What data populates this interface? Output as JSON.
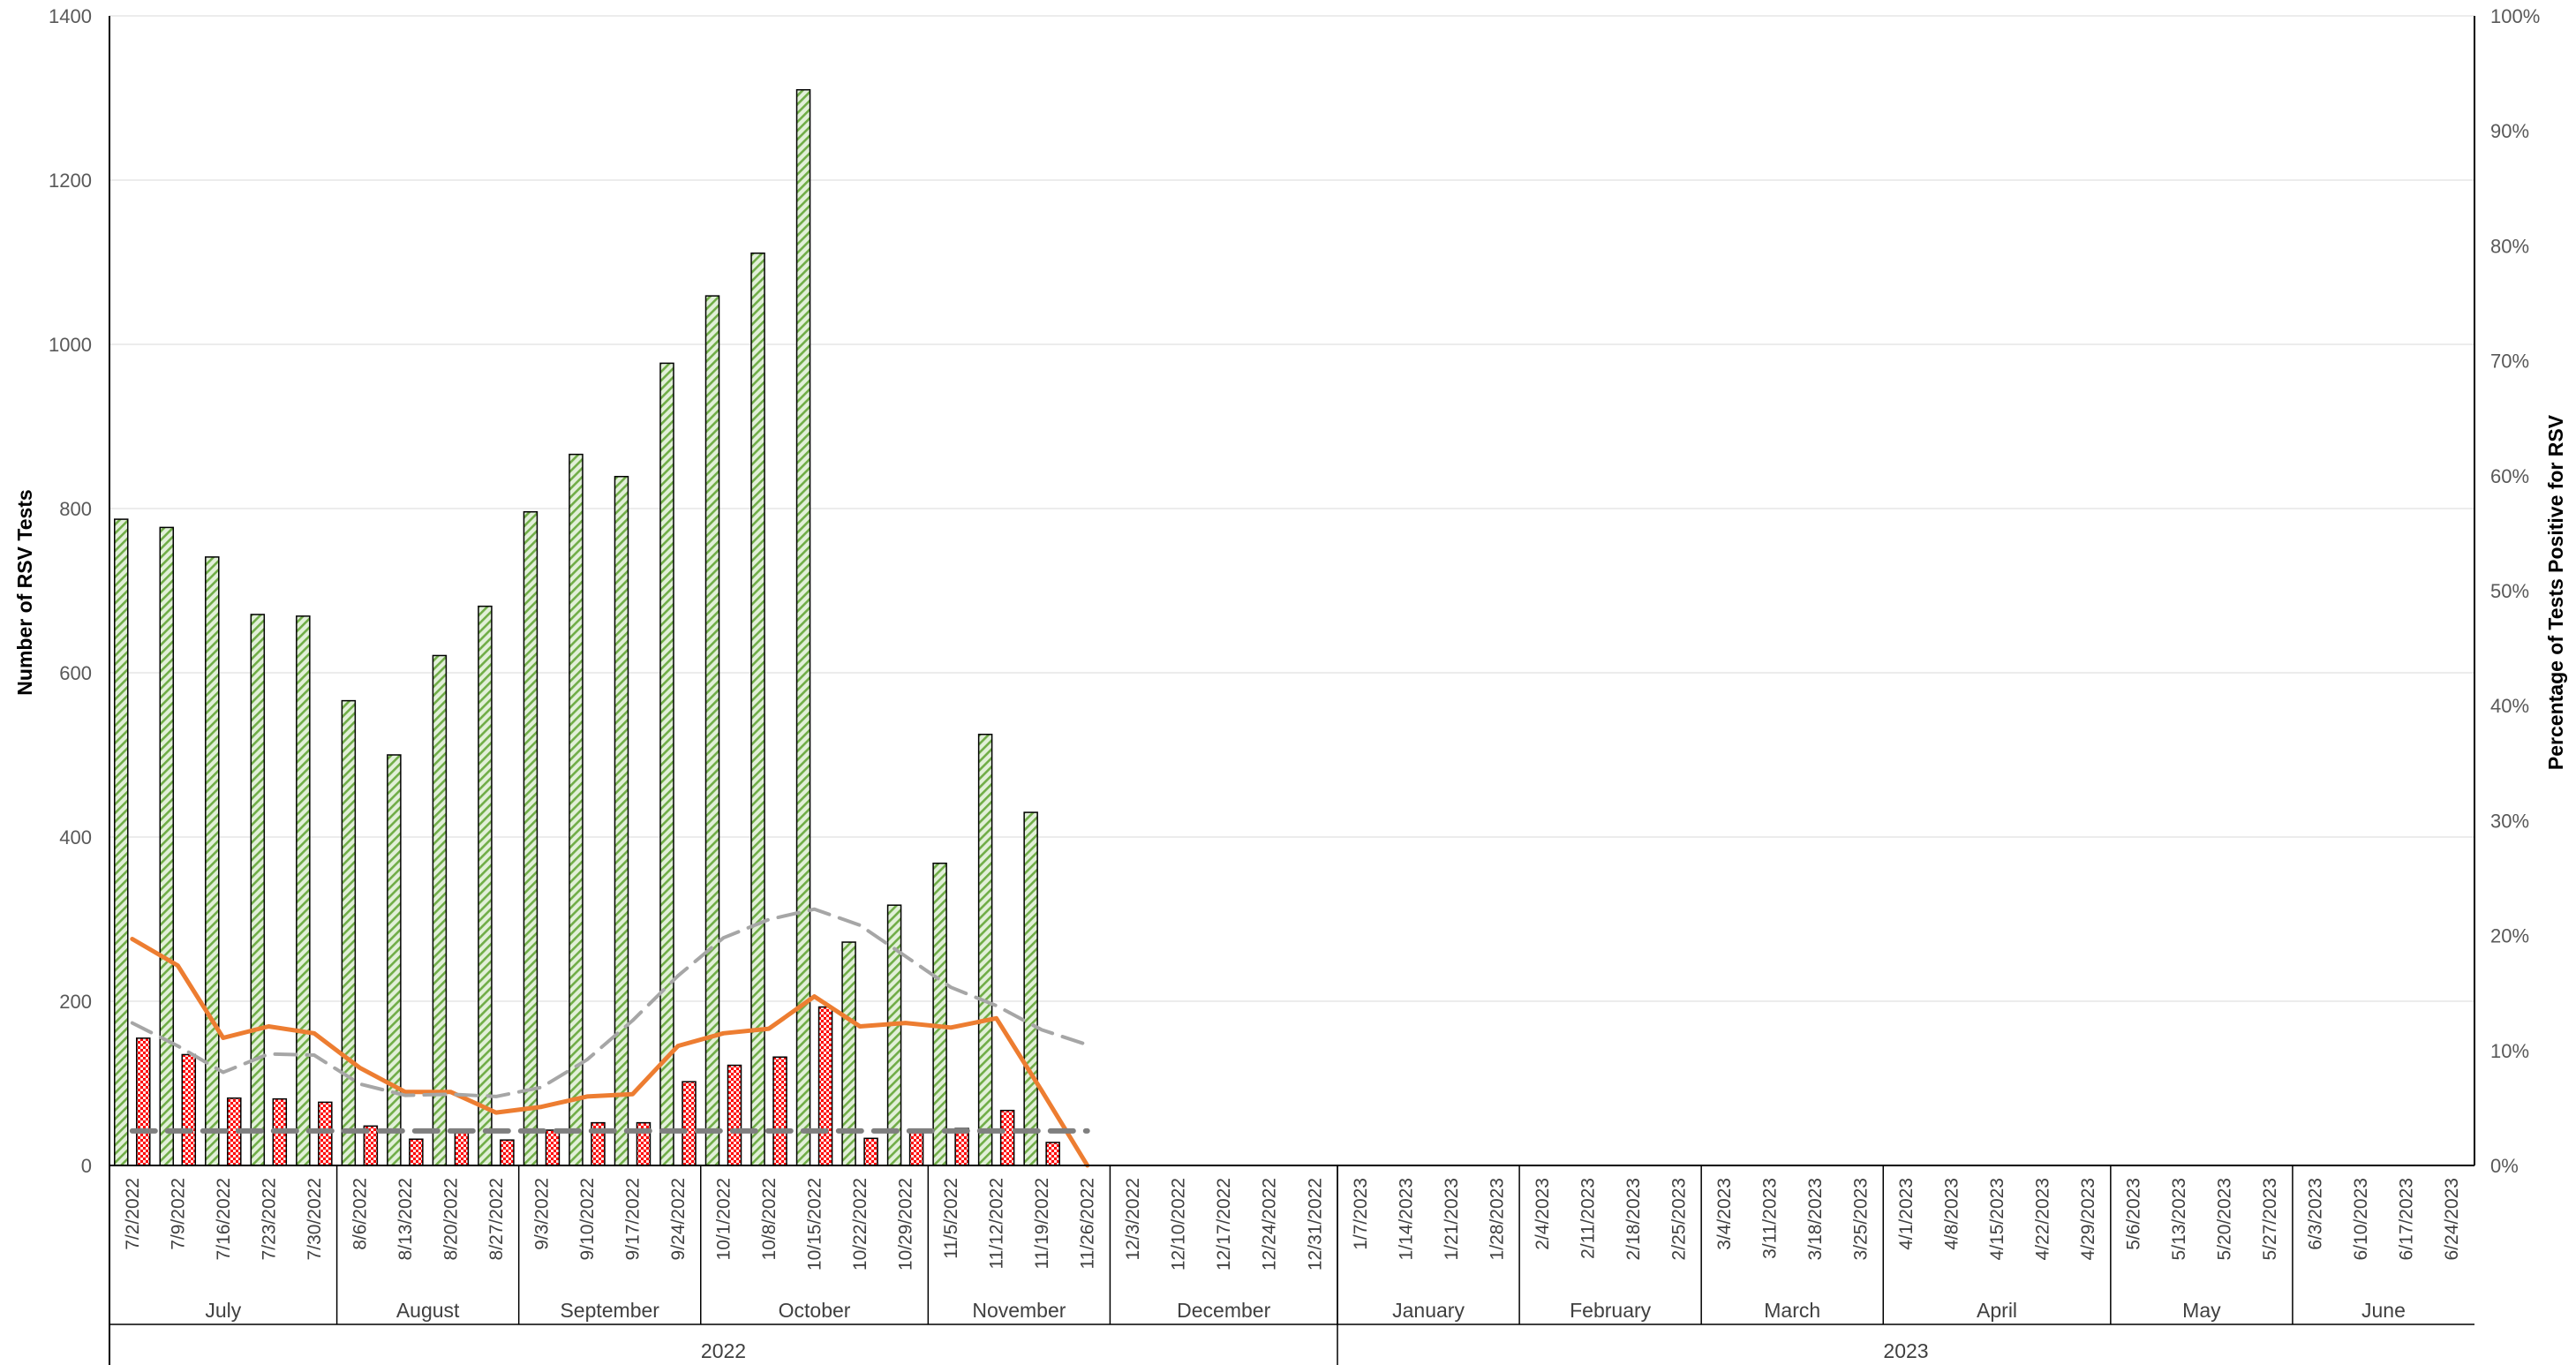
{
  "chart_data": {
    "type": "bar",
    "title": "",
    "ylabel": "Number of RSV Tests",
    "y2label": "Percentage of Tests Positive for RSV",
    "ylim": [
      0,
      1400
    ],
    "yticks": [
      "0",
      "200",
      "400",
      "600",
      "800",
      "1000",
      "1200",
      "1400"
    ],
    "y2lim": [
      0,
      100
    ],
    "y2ticks": [
      "0%",
      "10%",
      "20%",
      "30%",
      "40%",
      "50%",
      "60%",
      "70%",
      "80%",
      "90%",
      "100%"
    ],
    "grid": true,
    "categories": [
      "7/2/2022",
      "7/9/2022",
      "7/16/2022",
      "7/23/2022",
      "7/30/2022",
      "8/6/2022",
      "8/13/2022",
      "8/20/2022",
      "8/27/2022",
      "9/3/2022",
      "9/10/2022",
      "9/17/2022",
      "9/24/2022",
      "10/1/2022",
      "10/8/2022",
      "10/15/2022",
      "10/22/2022",
      "10/29/2022",
      "11/5/2022",
      "11/12/2022",
      "11/19/2022",
      "11/26/2022",
      "12/3/2022",
      "12/10/2022",
      "12/17/2022",
      "12/24/2022",
      "12/31/2022",
      "1/7/2023",
      "1/14/2023",
      "1/21/2023",
      "1/28/2023",
      "2/4/2023",
      "2/11/2023",
      "2/18/2023",
      "2/25/2023",
      "3/4/2023",
      "3/11/2023",
      "3/18/2023",
      "3/25/2023",
      "4/1/2023",
      "4/8/2023",
      "4/15/2023",
      "4/22/2023",
      "4/29/2023",
      "5/6/2023",
      "5/13/2023",
      "5/20/2023",
      "5/27/2023",
      "6/3/2023",
      "6/10/2023",
      "6/17/2023",
      "6/24/2023"
    ],
    "months": [
      {
        "label": "July",
        "count": 5
      },
      {
        "label": "August",
        "count": 4
      },
      {
        "label": "September",
        "count": 4
      },
      {
        "label": "October",
        "count": 5
      },
      {
        "label": "November",
        "count": 4
      },
      {
        "label": "December",
        "count": 5
      },
      {
        "label": "January",
        "count": 4
      },
      {
        "label": "February",
        "count": 4
      },
      {
        "label": "March",
        "count": 4
      },
      {
        "label": "April",
        "count": 5
      },
      {
        "label": "May",
        "count": 4
      },
      {
        "label": "June",
        "count": 4
      }
    ],
    "years": [
      {
        "label": "2022",
        "count": 27
      },
      {
        "label": "2023",
        "count": 25
      }
    ],
    "series": [
      {
        "type": "bar",
        "axis": "left",
        "color": "#c6e0b4",
        "pattern": "diagonal-stripes",
        "values": [
          787,
          777,
          741,
          671,
          669,
          566,
          500,
          621,
          681,
          796,
          866,
          839,
          977,
          1059,
          1111,
          1310,
          272,
          317,
          368,
          525,
          430,
          null,
          null,
          null,
          null,
          null,
          null,
          null,
          null,
          null,
          null,
          null,
          null,
          null,
          null,
          null,
          null,
          null,
          null,
          null,
          null,
          null,
          null,
          null,
          null,
          null,
          null,
          null,
          null,
          null,
          null,
          null
        ]
      },
      {
        "type": "bar",
        "axis": "left",
        "color": "#ff0000",
        "pattern": "checkered",
        "values": [
          155,
          135,
          82,
          81,
          77,
          48,
          32,
          40,
          31,
          43,
          52,
          52,
          102,
          122,
          132,
          193,
          33,
          41,
          45,
          67,
          28,
          null,
          null,
          null,
          null,
          null,
          null,
          null,
          null,
          null,
          null,
          null,
          null,
          null,
          null,
          null,
          null,
          null,
          null,
          null,
          null,
          null,
          null,
          null,
          null,
          null,
          null,
          null,
          null,
          null,
          null,
          null
        ]
      },
      {
        "type": "line",
        "axis": "right",
        "color": "#ed7d31",
        "style": "solid",
        "values": [
          19.7,
          17.4,
          11.1,
          12.1,
          11.5,
          8.5,
          6.4,
          6.4,
          4.6,
          5.1,
          6.0,
          6.2,
          10.4,
          11.5,
          11.9,
          14.7,
          12.1,
          12.4,
          12.0,
          12.8,
          6.5,
          0.0,
          null,
          null,
          null,
          null,
          null,
          null,
          null,
          null,
          null,
          null,
          null,
          null,
          null,
          null,
          null,
          null,
          null,
          null,
          null,
          null,
          null,
          null,
          null,
          null,
          null,
          null,
          null,
          null,
          null,
          null
        ]
      },
      {
        "type": "line",
        "axis": "right",
        "color": "#a6a6a6",
        "style": "dashed",
        "values": [
          12.4,
          10.4,
          8.1,
          9.7,
          9.6,
          7.1,
          6.1,
          6.2,
          6.0,
          6.8,
          9.2,
          12.6,
          16.5,
          19.8,
          21.4,
          22.3,
          20.9,
          18.2,
          15.5,
          13.9,
          11.8,
          10.5,
          null,
          null,
          null,
          null,
          null,
          null,
          null,
          null,
          null,
          null,
          null,
          null,
          null,
          null,
          null,
          null,
          null,
          null,
          null,
          null,
          null,
          null,
          null,
          null,
          null,
          null,
          null,
          null,
          null,
          null
        ]
      },
      {
        "type": "line",
        "axis": "right",
        "color": "#7f7f7f",
        "style": "dashed",
        "values": [
          3.0,
          3.0,
          3.0,
          3.0,
          3.0,
          3.0,
          3.0,
          3.0,
          3.0,
          3.0,
          3.0,
          3.0,
          3.0,
          3.0,
          3.0,
          3.0,
          3.0,
          3.0,
          3.0,
          3.0,
          3.0,
          3.0,
          null,
          null,
          null,
          null,
          null,
          null,
          null,
          null,
          null,
          null,
          null,
          null,
          null,
          null,
          null,
          null,
          null,
          null,
          null,
          null,
          null,
          null,
          null,
          null,
          null,
          null,
          null,
          null,
          null,
          null
        ]
      }
    ]
  }
}
